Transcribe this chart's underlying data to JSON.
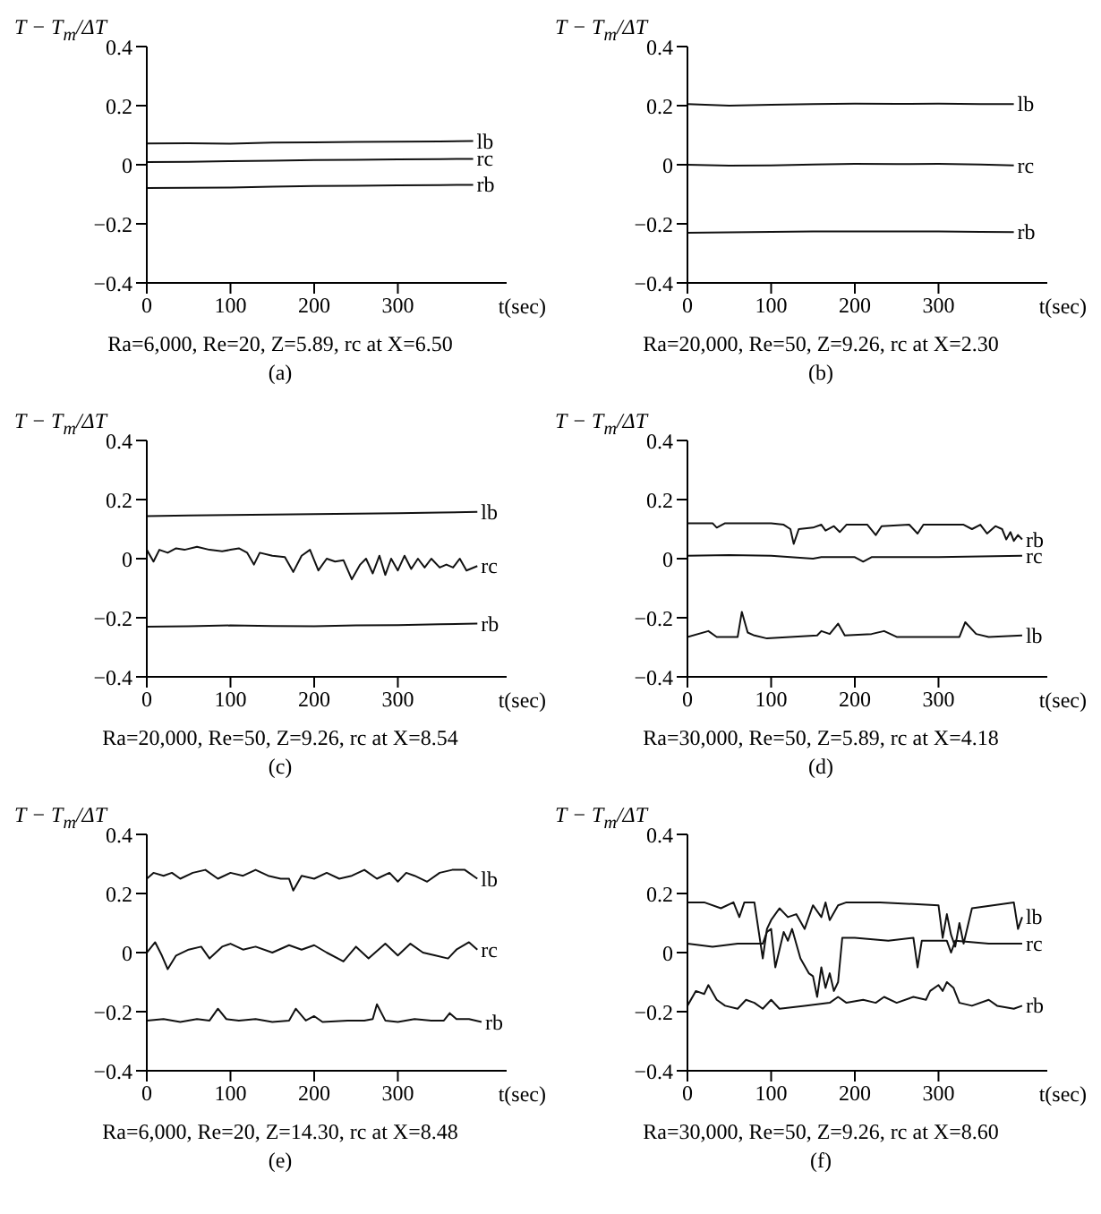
{
  "chart_data": [
    {
      "type": "line",
      "ylabel": "T − T$_{m}$/ΔT",
      "xlabel": "t(sec)",
      "xlim": [
        0,
        430
      ],
      "ylim": [
        -0.4,
        0.4
      ],
      "xticks": [
        0,
        100,
        200,
        300
      ],
      "yticks": [
        -0.4,
        -0.2,
        0,
        0.2,
        0.4
      ],
      "line_style": "solid",
      "annotations": [
        "Ra=6,000, Re=20, Z=5.89, rc at X=6.50",
        "(a)"
      ],
      "series": [
        {
          "name": "lb",
          "color": "#111111",
          "x": [
            0,
            50,
            100,
            150,
            200,
            250,
            300,
            350,
            390
          ],
          "values": [
            0.072,
            0.073,
            0.071,
            0.075,
            0.076,
            0.077,
            0.078,
            0.079,
            0.08
          ]
        },
        {
          "name": "rc",
          "color": "#111111",
          "x": [
            0,
            50,
            100,
            150,
            200,
            250,
            300,
            350,
            390
          ],
          "values": [
            0.009,
            0.01,
            0.012,
            0.014,
            0.016,
            0.017,
            0.018,
            0.019,
            0.02
          ]
        },
        {
          "name": "rb",
          "color": "#111111",
          "x": [
            0,
            50,
            100,
            150,
            200,
            250,
            300,
            350,
            390
          ],
          "values": [
            -0.079,
            -0.078,
            -0.077,
            -0.074,
            -0.072,
            -0.071,
            -0.07,
            -0.069,
            -0.068
          ]
        }
      ]
    },
    {
      "type": "line",
      "ylabel": "T − T$_{m}$/ΔT",
      "xlabel": "t(sec)",
      "xlim": [
        0,
        430
      ],
      "ylim": [
        -0.4,
        0.4
      ],
      "xticks": [
        0,
        100,
        200,
        300
      ],
      "yticks": [
        -0.4,
        -0.2,
        0,
        0.2,
        0.4
      ],
      "line_style": "solid",
      "annotations": [
        "Ra=20,000, Re=50, Z=9.26, rc at X=2.30",
        "(b)"
      ],
      "series": [
        {
          "name": "lb",
          "color": "#111111",
          "x": [
            0,
            50,
            100,
            150,
            200,
            250,
            300,
            350,
            390
          ],
          "values": [
            0.205,
            0.2,
            0.203,
            0.205,
            0.207,
            0.206,
            0.207,
            0.205,
            0.205
          ]
        },
        {
          "name": "rc",
          "color": "#111111",
          "x": [
            0,
            50,
            100,
            150,
            200,
            250,
            300,
            350,
            390
          ],
          "values": [
            0,
            -0.003,
            -0.002,
            0.001,
            0.003,
            0.002,
            0.003,
            0.001,
            -0.002
          ]
        },
        {
          "name": "rb",
          "color": "#111111",
          "x": [
            0,
            50,
            100,
            150,
            200,
            250,
            300,
            350,
            390
          ],
          "values": [
            -0.23,
            -0.229,
            -0.227,
            -0.226,
            -0.226,
            -0.226,
            -0.226,
            -0.227,
            -0.228
          ]
        }
      ]
    },
    {
      "type": "line",
      "ylabel": "T − T$_{m}$/ΔT",
      "xlabel": "t(sec)",
      "xlim": [
        0,
        430
      ],
      "ylim": [
        -0.4,
        0.4
      ],
      "xticks": [
        0,
        100,
        200,
        300
      ],
      "yticks": [
        -0.4,
        -0.2,
        0,
        0.2,
        0.4
      ],
      "line_style": "solid",
      "annotations": [
        "Ra=20,000, Re=50, Z=9.26, rc at X=8.54",
        "(c)"
      ],
      "series": [
        {
          "name": "lb",
          "color": "#111111",
          "x": [
            0,
            50,
            100,
            150,
            200,
            250,
            300,
            350,
            395
          ],
          "values": [
            0.144,
            0.146,
            0.148,
            0.149,
            0.151,
            0.152,
            0.154,
            0.156,
            0.158
          ]
        },
        {
          "name": "rc",
          "color": "#111111",
          "x": [
            0,
            8,
            15,
            25,
            35,
            45,
            60,
            75,
            90,
            100,
            110,
            120,
            128,
            135,
            150,
            165,
            175,
            185,
            195,
            205,
            215,
            225,
            235,
            245,
            255,
            262,
            270,
            278,
            285,
            292,
            300,
            308,
            316,
            324,
            332,
            340,
            350,
            358,
            366,
            374,
            382,
            395
          ],
          "values": [
            0.03,
            -0.01,
            0.03,
            0.02,
            0.035,
            0.03,
            0.04,
            0.03,
            0.025,
            0.03,
            0.035,
            0.02,
            -0.02,
            0.02,
            0.01,
            0.005,
            -0.045,
            0.01,
            0.03,
            -0.04,
            0,
            -0.01,
            -0.005,
            -0.07,
            -0.02,
            0,
            -0.05,
            0.01,
            -0.055,
            0,
            -0.04,
            0.01,
            -0.035,
            0,
            -0.03,
            0,
            -0.03,
            -0.02,
            -0.03,
            0,
            -0.04,
            -0.025
          ]
        },
        {
          "name": "rb",
          "color": "#111111",
          "x": [
            0,
            50,
            100,
            150,
            200,
            250,
            300,
            350,
            395
          ],
          "values": [
            -0.23,
            -0.229,
            -0.226,
            -0.228,
            -0.229,
            -0.226,
            -0.225,
            -0.222,
            -0.22
          ]
        }
      ]
    },
    {
      "type": "line",
      "ylabel": "T − T$_{m}$/ΔT",
      "xlabel": "t(sec)",
      "xlim": [
        0,
        430
      ],
      "ylim": [
        -0.4,
        0.4
      ],
      "xticks": [
        0,
        100,
        200,
        300
      ],
      "yticks": [
        -0.4,
        -0.2,
        0,
        0.2,
        0.4
      ],
      "line_style": "solid",
      "annotations": [
        "Ra=30,000, Re=50, Z=5.89, rc at X=4.18",
        "(d)"
      ],
      "series": [
        {
          "name": "rb",
          "color": "#111111",
          "x": [
            0,
            30,
            35,
            45,
            100,
            115,
            123,
            127,
            133,
            150,
            160,
            165,
            175,
            182,
            190,
            215,
            225,
            232,
            265,
            275,
            282,
            330,
            340,
            350,
            358,
            368,
            376,
            381,
            386,
            390,
            395,
            400
          ],
          "values": [
            0.12,
            0.12,
            0.105,
            0.12,
            0.12,
            0.115,
            0.1,
            0.05,
            0.1,
            0.105,
            0.115,
            0.095,
            0.11,
            0.09,
            0.115,
            0.115,
            0.08,
            0.11,
            0.115,
            0.085,
            0.115,
            0.115,
            0.1,
            0.115,
            0.085,
            0.11,
            0.1,
            0.065,
            0.09,
            0.06,
            0.08,
            0.065
          ]
        },
        {
          "name": "rc",
          "color": "#111111",
          "x": [
            0,
            50,
            100,
            150,
            160,
            200,
            210,
            220,
            300,
            400
          ],
          "values": [
            0.01,
            0.012,
            0.01,
            0,
            0.005,
            0.005,
            -0.01,
            0.005,
            0.005,
            0.01
          ]
        },
        {
          "name": "lb",
          "color": "#111111",
          "x": [
            0,
            25,
            35,
            60,
            65,
            72,
            80,
            95,
            155,
            160,
            170,
            180,
            188,
            220,
            235,
            250,
            325,
            332,
            345,
            360,
            400
          ],
          "values": [
            -0.265,
            -0.245,
            -0.265,
            -0.265,
            -0.18,
            -0.25,
            -0.26,
            -0.27,
            -0.26,
            -0.245,
            -0.255,
            -0.22,
            -0.26,
            -0.255,
            -0.245,
            -0.265,
            -0.265,
            -0.215,
            -0.255,
            -0.265,
            -0.26
          ]
        }
      ]
    },
    {
      "type": "line",
      "ylabel": "T − T$_{m}$/ΔT",
      "xlabel": "t(sec)",
      "xlim": [
        0,
        430
      ],
      "ylim": [
        -0.4,
        0.4
      ],
      "xticks": [
        0,
        100,
        200,
        300
      ],
      "yticks": [
        -0.4,
        -0.2,
        0,
        0.2,
        0.4
      ],
      "line_style": "solid",
      "annotations": [
        "Ra=6,000, Re=20, Z=14.30, rc at X=8.48",
        "(e)"
      ],
      "series": [
        {
          "name": "lb",
          "color": "#111111",
          "x": [
            0,
            8,
            20,
            30,
            40,
            55,
            70,
            85,
            100,
            115,
            130,
            145,
            160,
            170,
            175,
            185,
            200,
            215,
            230,
            245,
            260,
            275,
            290,
            300,
            310,
            320,
            335,
            350,
            365,
            380,
            395
          ],
          "values": [
            0.25,
            0.27,
            0.26,
            0.27,
            0.25,
            0.27,
            0.28,
            0.25,
            0.27,
            0.26,
            0.28,
            0.26,
            0.25,
            0.25,
            0.21,
            0.26,
            0.25,
            0.27,
            0.25,
            0.26,
            0.28,
            0.25,
            0.27,
            0.24,
            0.27,
            0.26,
            0.24,
            0.27,
            0.28,
            0.28,
            0.25
          ]
        },
        {
          "name": "rc",
          "color": "#111111",
          "x": [
            0,
            10,
            18,
            25,
            35,
            50,
            65,
            75,
            90,
            100,
            115,
            130,
            150,
            170,
            185,
            200,
            215,
            235,
            250,
            265,
            285,
            300,
            315,
            330,
            345,
            360,
            370,
            385,
            395
          ],
          "values": [
            0,
            0.035,
            -0.01,
            -0.056,
            -0.01,
            0.01,
            0.02,
            -0.02,
            0.02,
            0.03,
            0.01,
            0.02,
            0,
            0.025,
            0.01,
            0.025,
            0,
            -0.03,
            0.02,
            -0.02,
            0.03,
            -0.01,
            0.03,
            0,
            -0.01,
            -0.02,
            0.01,
            0.035,
            0.01
          ]
        },
        {
          "name": "rb",
          "color": "#111111",
          "x": [
            0,
            20,
            40,
            60,
            75,
            85,
            95,
            110,
            130,
            150,
            170,
            178,
            190,
            200,
            210,
            240,
            260,
            270,
            275,
            285,
            300,
            320,
            340,
            355,
            362,
            370,
            385,
            400
          ],
          "values": [
            -0.23,
            -0.225,
            -0.235,
            -0.225,
            -0.23,
            -0.19,
            -0.225,
            -0.23,
            -0.225,
            -0.235,
            -0.23,
            -0.19,
            -0.23,
            -0.215,
            -0.235,
            -0.23,
            -0.23,
            -0.225,
            -0.175,
            -0.23,
            -0.235,
            -0.225,
            -0.23,
            -0.23,
            -0.205,
            -0.225,
            -0.225,
            -0.235
          ]
        }
      ]
    },
    {
      "type": "line",
      "ylabel": "T − T$_{m}$/ΔT",
      "xlabel": "t(sec)",
      "xlim": [
        0,
        430
      ],
      "ylim": [
        -0.4,
        0.4
      ],
      "xticks": [
        0,
        100,
        200,
        300
      ],
      "yticks": [
        -0.4,
        -0.2,
        0,
        0.2,
        0.4
      ],
      "line_style": "solid",
      "annotations": [
        "Ra=30,000, Re=50, Z=9.26, rc at X=8.60",
        "(f)"
      ],
      "series": [
        {
          "name": "lb",
          "color": "#111111",
          "x": [
            0,
            20,
            40,
            55,
            62,
            68,
            80,
            90,
            95,
            100,
            110,
            120,
            130,
            140,
            150,
            160,
            165,
            170,
            180,
            190,
            230,
            300,
            305,
            310,
            315,
            320,
            325,
            330,
            340,
            390,
            395,
            400
          ],
          "values": [
            0.17,
            0.17,
            0.15,
            0.17,
            0.12,
            0.17,
            0.17,
            -0.02,
            0.08,
            0.11,
            0.15,
            0.12,
            0.13,
            0.08,
            0.16,
            0.12,
            0.17,
            0.11,
            0.16,
            0.17,
            0.17,
            0.16,
            0.05,
            0.13,
            0.06,
            0.02,
            0.1,
            0.03,
            0.15,
            0.17,
            0.08,
            0.12
          ]
        },
        {
          "name": "rc",
          "color": "#111111",
          "x": [
            0,
            30,
            60,
            90,
            95,
            100,
            105,
            115,
            120,
            125,
            135,
            145,
            150,
            155,
            160,
            165,
            170,
            175,
            180,
            185,
            200,
            240,
            270,
            275,
            280,
            310,
            315,
            320,
            360,
            400
          ],
          "values": [
            0.03,
            0.02,
            0.03,
            0.03,
            0.07,
            0.08,
            -0.05,
            0.07,
            0.04,
            0.08,
            -0.02,
            -0.07,
            -0.08,
            -0.15,
            -0.05,
            -0.12,
            -0.07,
            -0.13,
            -0.1,
            0.05,
            0.05,
            0.04,
            0.05,
            -0.05,
            0.04,
            0.04,
            0,
            0.04,
            0.03,
            0.03
          ]
        },
        {
          "name": "rb",
          "color": "#111111",
          "x": [
            0,
            10,
            20,
            25,
            35,
            45,
            60,
            70,
            80,
            90,
            100,
            110,
            140,
            170,
            180,
            190,
            210,
            225,
            235,
            250,
            270,
            285,
            290,
            300,
            305,
            310,
            318,
            325,
            340,
            360,
            370,
            390,
            400
          ],
          "values": [
            -0.18,
            -0.13,
            -0.14,
            -0.11,
            -0.16,
            -0.18,
            -0.19,
            -0.16,
            -0.17,
            -0.19,
            -0.16,
            -0.19,
            -0.18,
            -0.17,
            -0.15,
            -0.17,
            -0.16,
            -0.17,
            -0.15,
            -0.17,
            -0.15,
            -0.16,
            -0.13,
            -0.11,
            -0.13,
            -0.1,
            -0.12,
            -0.17,
            -0.18,
            -0.16,
            -0.18,
            -0.19,
            -0.18
          ]
        }
      ]
    }
  ]
}
